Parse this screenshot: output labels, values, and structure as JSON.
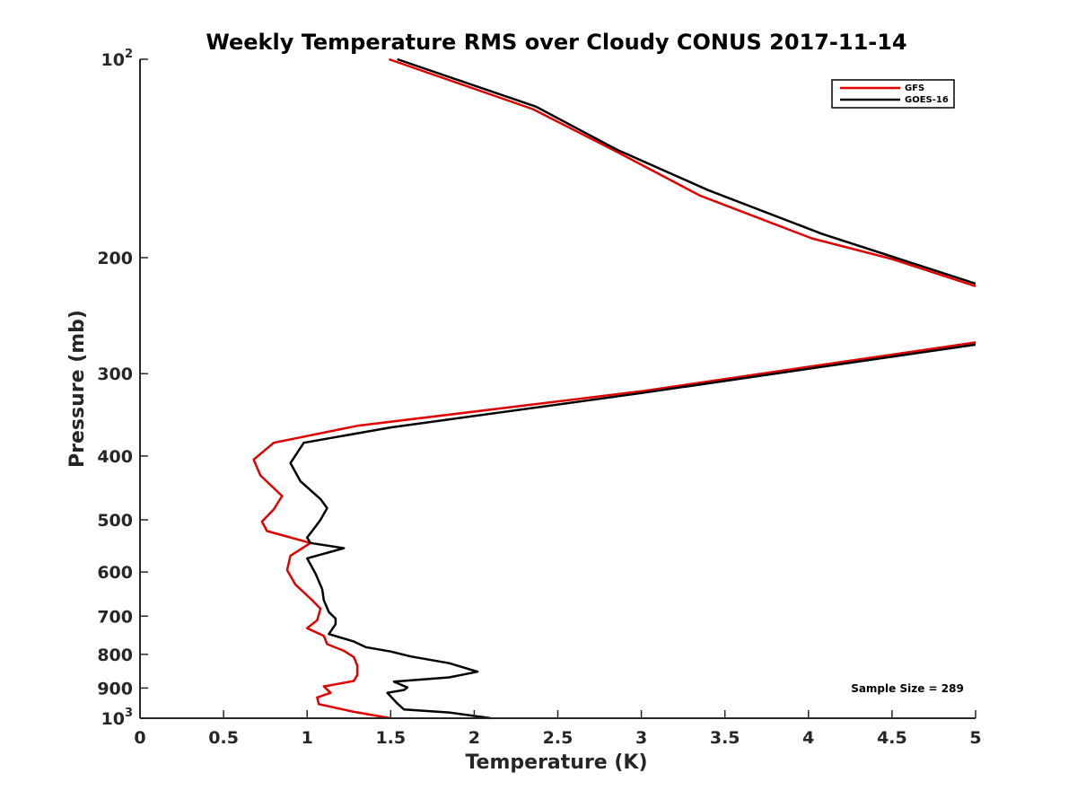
{
  "chart_data": {
    "type": "line",
    "title": "Weekly Temperature RMS over Cloudy CONUS 2017-11-14",
    "xlabel": "Temperature (K)",
    "ylabel": "Pressure (mb)",
    "xlim": [
      0,
      5
    ],
    "ylim": [
      100,
      1000
    ],
    "yscale": "log",
    "y_reversed": true,
    "x_ticks": [
      {
        "value": 0,
        "label": "0"
      },
      {
        "value": 0.5,
        "label": "0.5"
      },
      {
        "value": 1,
        "label": "1"
      },
      {
        "value": 1.5,
        "label": "1.5"
      },
      {
        "value": 2,
        "label": "2"
      },
      {
        "value": 2.5,
        "label": "2.5"
      },
      {
        "value": 3,
        "label": "3"
      },
      {
        "value": 3.5,
        "label": "3.5"
      },
      {
        "value": 4,
        "label": "4"
      },
      {
        "value": 4.5,
        "label": "4.5"
      },
      {
        "value": 5,
        "label": "5"
      }
    ],
    "y_ticks": [
      {
        "value": 100,
        "base": "10",
        "sup": "2"
      },
      {
        "value": 200,
        "base": "200",
        "sup": ""
      },
      {
        "value": 300,
        "base": "300",
        "sup": ""
      },
      {
        "value": 400,
        "base": "400",
        "sup": ""
      },
      {
        "value": 500,
        "base": "500",
        "sup": ""
      },
      {
        "value": 600,
        "base": "600",
        "sup": ""
      },
      {
        "value": 700,
        "base": "700",
        "sup": ""
      },
      {
        "value": 800,
        "base": "800",
        "sup": ""
      },
      {
        "value": 900,
        "base": "900",
        "sup": ""
      },
      {
        "value": 1000,
        "base": "10",
        "sup": "3"
      }
    ],
    "legend_position": "top-right",
    "annotation": "Sample Size = 289",
    "series": [
      {
        "name": "GFS",
        "color": "#e00000",
        "segments": [
          [
            [
              1.49,
              100
            ],
            [
              2.35,
              119
            ],
            [
              2.85,
              138
            ],
            [
              3.35,
              161
            ],
            [
              4.02,
              187
            ],
            [
              4.5,
              201
            ],
            [
              5.0,
              221
            ]
          ],
          [
            [
              5.0,
              269
            ],
            [
              3.0,
              319
            ],
            [
              1.3,
              360
            ],
            [
              0.8,
              382
            ],
            [
              0.68,
              405
            ],
            [
              0.72,
              428
            ],
            [
              0.85,
              460
            ],
            [
              0.8,
              482
            ],
            [
              0.73,
              503
            ],
            [
              0.76,
              520
            ],
            [
              1.02,
              542
            ],
            [
              0.9,
              567
            ],
            [
              0.88,
              596
            ],
            [
              0.93,
              627
            ],
            [
              1.03,
              662
            ],
            [
              1.08,
              682
            ],
            [
              1.06,
              710
            ],
            [
              1.0,
              730
            ],
            [
              1.1,
              750
            ],
            [
              1.12,
              772
            ],
            [
              1.22,
              790
            ],
            [
              1.28,
              808
            ],
            [
              1.3,
              832
            ],
            [
              1.3,
              860
            ],
            [
              1.28,
              878
            ],
            [
              1.1,
              895
            ],
            [
              1.14,
              915
            ],
            [
              1.06,
              930
            ],
            [
              1.07,
              952
            ],
            [
              1.28,
              978
            ],
            [
              1.5,
              1000
            ]
          ]
        ]
      },
      {
        "name": "GOES-16",
        "color": "#000000",
        "segments": [
          [
            [
              1.54,
              100
            ],
            [
              2.37,
              118
            ],
            [
              2.85,
              137
            ],
            [
              3.4,
              158
            ],
            [
              4.08,
              184
            ],
            [
              4.52,
              200
            ],
            [
              5.0,
              219
            ]
          ],
          [
            [
              5.0,
              271
            ],
            [
              3.0,
              321
            ],
            [
              1.5,
              362
            ],
            [
              0.98,
              382
            ],
            [
              0.9,
              410
            ],
            [
              0.96,
              437
            ],
            [
              1.08,
              465
            ],
            [
              1.12,
              480
            ],
            [
              1.08,
              500
            ],
            [
              1.05,
              512
            ],
            [
              1.0,
              532
            ],
            [
              1.02,
              542
            ],
            [
              1.22,
              552
            ],
            [
              1.0,
              572
            ],
            [
              1.05,
              603
            ],
            [
              1.09,
              637
            ],
            [
              1.1,
              662
            ],
            [
              1.13,
              690
            ],
            [
              1.17,
              706
            ],
            [
              1.17,
              720
            ],
            [
              1.13,
              745
            ],
            [
              1.28,
              765
            ],
            [
              1.35,
              780
            ],
            [
              1.5,
              792
            ],
            [
              1.62,
              806
            ],
            [
              1.85,
              825
            ],
            [
              2.02,
              850
            ],
            [
              1.85,
              867
            ],
            [
              1.52,
              880
            ],
            [
              1.6,
              898
            ],
            [
              1.58,
              906
            ],
            [
              1.48,
              915
            ],
            [
              1.54,
              950
            ],
            [
              1.58,
              970
            ],
            [
              1.85,
              980
            ],
            [
              2.1,
              1000
            ]
          ]
        ]
      }
    ]
  }
}
